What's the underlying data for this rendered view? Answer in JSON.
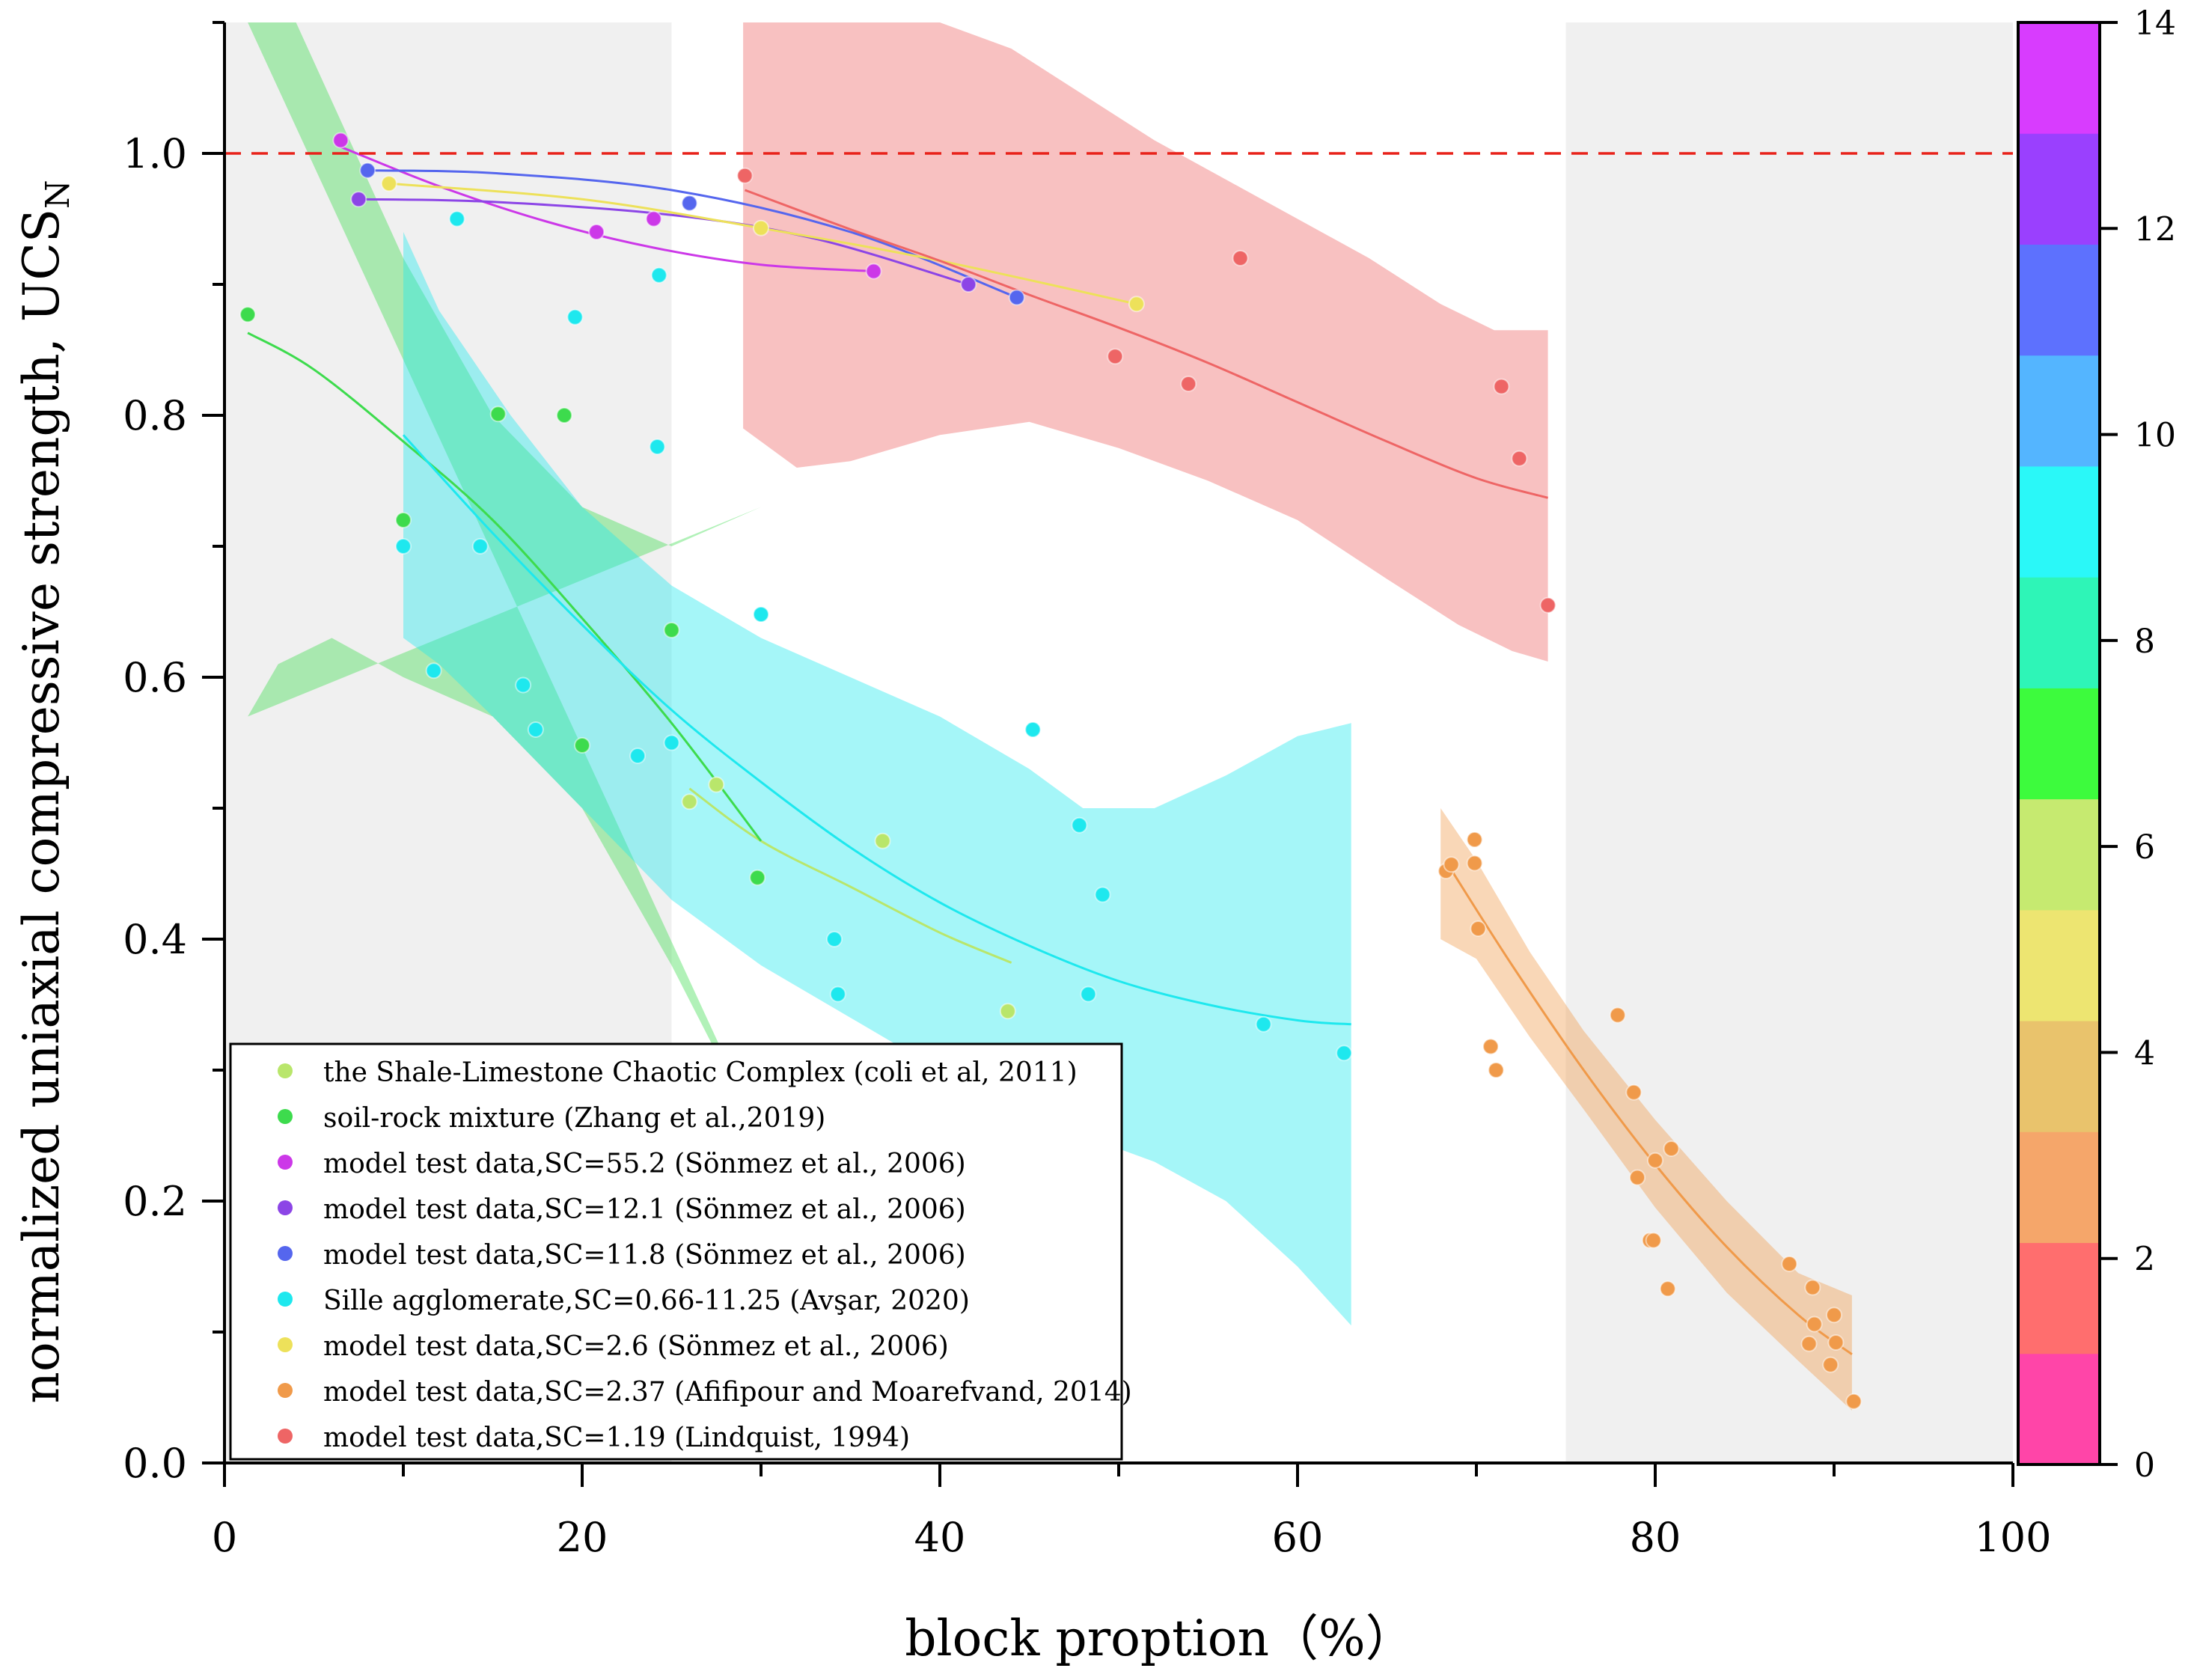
{
  "chart_data": {
    "type": "scatter",
    "xlabel": "block proption（%）",
    "ylabel": "normalized uniaxial compressive strength, UCS",
    "ylabel_sub": "N",
    "xlim": [
      0,
      100
    ],
    "ylim": [
      0,
      1.1
    ],
    "xticks": [
      0,
      20,
      40,
      60,
      80,
      100
    ],
    "yticks": [
      0.0,
      0.2,
      0.4,
      0.6,
      0.8,
      1.0
    ],
    "xtick_labels": [
      "0",
      "20",
      "40",
      "60",
      "80",
      "100"
    ],
    "ytick_labels": [
      "0.0",
      "0.2",
      "0.4",
      "0.6",
      "0.8",
      "1.0"
    ],
    "reference_line": {
      "y": 1.0,
      "color": "#e8221a",
      "style": "dashed"
    },
    "shaded_bands": [
      {
        "x_range": [
          0,
          25
        ],
        "color": "#f0f0f0"
      },
      {
        "x_range": [
          75,
          100
        ],
        "color": "#f0f0f0"
      }
    ],
    "colorbar": {
      "range": [
        0,
        14
      ],
      "ticks": [
        "0",
        "2",
        "4",
        "6",
        "8",
        "10",
        "12",
        "14"
      ],
      "tick_values": [
        0,
        2,
        4,
        6,
        8,
        10,
        12,
        14
      ],
      "colors": [
        "#ff45a8",
        "#ff6e6e",
        "#f5a66a",
        "#e9c36c",
        "#ede571",
        "#c6ea70",
        "#3dfb3d",
        "#2ef5b7",
        "#2af8f8",
        "#54b5ff",
        "#5d71fe",
        "#9a40fe",
        "#d83cfe"
      ]
    },
    "series": [
      {
        "name": "the Shale-Limestone Chaotic Complex (coli et al, 2011)",
        "color": "#b9e66b",
        "points": [
          [
            26,
            0.505
          ],
          [
            27.5,
            0.518
          ],
          [
            43.8,
            0.345
          ],
          [
            36.8,
            0.475
          ]
        ],
        "fit": [
          [
            26,
            0.515
          ],
          [
            30,
            0.475
          ],
          [
            35,
            0.44
          ],
          [
            40,
            0.405
          ],
          [
            44,
            0.382
          ]
        ]
      },
      {
        "name": "soil-rock mixture (Zhang et al.,2019)",
        "color": "#3ddb4d",
        "points": [
          [
            1.3,
            0.877
          ],
          [
            15.3,
            0.801
          ],
          [
            19,
            0.8
          ],
          [
            10,
            0.72
          ],
          [
            25,
            0.636
          ],
          [
            20,
            0.548
          ],
          [
            29.8,
            0.447
          ]
        ],
        "fit": [
          [
            1.3,
            0.863
          ],
          [
            5,
            0.835
          ],
          [
            10,
            0.78
          ],
          [
            15,
            0.72
          ],
          [
            20,
            0.645
          ],
          [
            25,
            0.565
          ],
          [
            30,
            0.475
          ]
        ],
        "band": {
          "upper": [
            [
              1.3,
              1.1
            ],
            [
              4,
              1.1
            ],
            [
              6,
              1.04
            ],
            [
              10,
              0.92
            ],
            [
              15,
              0.8
            ],
            [
              20,
              0.73
            ],
            [
              25,
              0.7
            ],
            [
              30,
              0.73
            ]
          ],
          "lower": [
            [
              1.3,
              0.57
            ],
            [
              3,
              0.61
            ],
            [
              6,
              0.63
            ],
            [
              10,
              0.6
            ],
            [
              15,
              0.57
            ],
            [
              20,
              0.5
            ],
            [
              25,
              0.38
            ],
            [
              28,
              0.3
            ],
            [
              30,
              0.25
            ]
          ]
        }
      },
      {
        "name": "model test data,SC=55.2 (Sönmez et al., 2006)",
        "color": "#cc38e8",
        "points": [
          [
            6.5,
            1.01
          ],
          [
            20.8,
            0.94
          ],
          [
            24,
            0.95
          ],
          [
            36.3,
            0.91
          ]
        ],
        "fit": [
          [
            6.5,
            1.005
          ],
          [
            12,
            0.975
          ],
          [
            18,
            0.948
          ],
          [
            24,
            0.928
          ],
          [
            30,
            0.915
          ],
          [
            36.3,
            0.91
          ]
        ]
      },
      {
        "name": "model test data,SC=12.1 (Sönmez et al., 2006)",
        "color": "#8c45e6",
        "points": [
          [
            7.5,
            0.965
          ],
          [
            41.6,
            0.9
          ]
        ],
        "fit": [
          [
            7.5,
            0.965
          ],
          [
            15,
            0.963
          ],
          [
            25,
            0.953
          ],
          [
            33,
            0.935
          ],
          [
            41.6,
            0.9
          ]
        ]
      },
      {
        "name": "model test data,SC=11.8 (Sönmez et al., 2006)",
        "color": "#5566ee",
        "points": [
          [
            8,
            0.987
          ],
          [
            26,
            0.962
          ],
          [
            44.3,
            0.89
          ]
        ],
        "fit": [
          [
            8,
            0.987
          ],
          [
            15,
            0.985
          ],
          [
            25,
            0.972
          ],
          [
            35,
            0.94
          ],
          [
            44.3,
            0.89
          ]
        ]
      },
      {
        "name": "Sille agglomerate,SC=0.66-11.25 (Avşar, 2020)",
        "color": "#1ee8ee",
        "points": [
          [
            13,
            0.95
          ],
          [
            24.3,
            0.907
          ],
          [
            19.6,
            0.875
          ],
          [
            24.2,
            0.776
          ],
          [
            10,
            0.7
          ],
          [
            14.3,
            0.7
          ],
          [
            30,
            0.648
          ],
          [
            11.7,
            0.605
          ],
          [
            16.7,
            0.594
          ],
          [
            17.4,
            0.56
          ],
          [
            23.1,
            0.54
          ],
          [
            25,
            0.55
          ],
          [
            45.2,
            0.56
          ],
          [
            47.8,
            0.487
          ],
          [
            49.1,
            0.434
          ],
          [
            34.1,
            0.4
          ],
          [
            34.3,
            0.358
          ],
          [
            48.3,
            0.358
          ],
          [
            58.1,
            0.335
          ],
          [
            62.6,
            0.313
          ]
        ],
        "fit": [
          [
            10,
            0.785
          ],
          [
            15,
            0.71
          ],
          [
            20,
            0.64
          ],
          [
            25,
            0.575
          ],
          [
            30,
            0.52
          ],
          [
            35,
            0.47
          ],
          [
            40,
            0.428
          ],
          [
            45,
            0.395
          ],
          [
            50,
            0.368
          ],
          [
            55,
            0.35
          ],
          [
            60,
            0.338
          ],
          [
            63,
            0.335
          ]
        ],
        "band": {
          "upper": [
            [
              10,
              0.94
            ],
            [
              12,
              0.88
            ],
            [
              16,
              0.8
            ],
            [
              20,
              0.73
            ],
            [
              25,
              0.67
            ],
            [
              30,
              0.63
            ],
            [
              35,
              0.6
            ],
            [
              40,
              0.57
            ],
            [
              45,
              0.53
            ],
            [
              48,
              0.5
            ],
            [
              52,
              0.5
            ],
            [
              56,
              0.525
            ],
            [
              60,
              0.555
            ],
            [
              63,
              0.565
            ]
          ],
          "lower": [
            [
              63,
              0.105
            ],
            [
              60,
              0.15
            ],
            [
              56,
              0.2
            ],
            [
              52,
              0.23
            ],
            [
              48,
              0.25
            ],
            [
              44,
              0.275
            ],
            [
              40,
              0.3
            ],
            [
              35,
              0.34
            ],
            [
              30,
              0.38
            ],
            [
              25,
              0.43
            ],
            [
              20,
              0.5
            ],
            [
              15,
              0.57
            ],
            [
              12,
              0.61
            ],
            [
              10,
              0.63
            ]
          ]
        }
      },
      {
        "name": "model test data,SC=2.6 (Sönmez et al., 2006)",
        "color": "#ede15a",
        "points": [
          [
            9.2,
            0.977
          ],
          [
            30,
            0.943
          ],
          [
            51,
            0.885
          ]
        ],
        "fit": [
          [
            9.2,
            0.977
          ],
          [
            20,
            0.965
          ],
          [
            30,
            0.943
          ],
          [
            40,
            0.918
          ],
          [
            51,
            0.885
          ]
        ]
      },
      {
        "name": "model test data,SC=2.37 (Afifipour and Moarefvand, 2014)",
        "color": "#f09a4a",
        "points": [
          [
            68.3,
            0.452
          ],
          [
            68.6,
            0.457
          ],
          [
            69.9,
            0.476
          ],
          [
            69.9,
            0.458
          ],
          [
            70.1,
            0.408
          ],
          [
            70.8,
            0.318
          ],
          [
            71.1,
            0.3
          ],
          [
            77.9,
            0.342
          ],
          [
            78.8,
            0.283
          ],
          [
            79,
            0.218
          ],
          [
            79.7,
            0.17
          ],
          [
            79.9,
            0.17
          ],
          [
            80,
            0.231
          ],
          [
            80.7,
            0.133
          ],
          [
            80.9,
            0.24
          ],
          [
            87.5,
            0.152
          ],
          [
            88.6,
            0.091
          ],
          [
            88.8,
            0.134
          ],
          [
            88.9,
            0.106
          ],
          [
            89.8,
            0.075
          ],
          [
            90,
            0.113
          ],
          [
            90.1,
            0.092
          ],
          [
            91.1,
            0.047
          ]
        ],
        "fit": [
          [
            68.5,
            0.455
          ],
          [
            72,
            0.38
          ],
          [
            76,
            0.3
          ],
          [
            80,
            0.228
          ],
          [
            84,
            0.165
          ],
          [
            88,
            0.113
          ],
          [
            91,
            0.083
          ]
        ],
        "band": {
          "upper": [
            [
              68,
              0.5
            ],
            [
              70,
              0.46
            ],
            [
              73,
              0.39
            ],
            [
              76,
              0.33
            ],
            [
              80,
              0.262
            ],
            [
              84,
              0.2
            ],
            [
              88,
              0.145
            ],
            [
              91,
              0.128
            ]
          ],
          "lower": [
            [
              91,
              0.04
            ],
            [
              88,
              0.078
            ],
            [
              84,
              0.13
            ],
            [
              80,
              0.195
            ],
            [
              76,
              0.27
            ],
            [
              73,
              0.325
            ],
            [
              70,
              0.385
            ],
            [
              68,
              0.4
            ]
          ]
        }
      },
      {
        "name": "model test data,SC=1.19 (Lindquist, 1994)",
        "color": "#ee6565",
        "points": [
          [
            29.1,
            0.983
          ],
          [
            49.8,
            0.845
          ],
          [
            53.9,
            0.824
          ],
          [
            56.8,
            0.92
          ],
          [
            71.4,
            0.822
          ],
          [
            72.4,
            0.767
          ],
          [
            74,
            0.655
          ]
        ],
        "fit": [
          [
            29.1,
            0.972
          ],
          [
            35,
            0.942
          ],
          [
            40,
            0.918
          ],
          [
            45,
            0.892
          ],
          [
            50,
            0.867
          ],
          [
            55,
            0.84
          ],
          [
            60,
            0.81
          ],
          [
            65,
            0.78
          ],
          [
            70,
            0.752
          ],
          [
            74,
            0.737
          ]
        ],
        "band": {
          "upper": [
            [
              29,
              1.1
            ],
            [
              35,
              1.1
            ],
            [
              40,
              1.1
            ],
            [
              44,
              1.08
            ],
            [
              48,
              1.045
            ],
            [
              52,
              1.01
            ],
            [
              56,
              0.98
            ],
            [
              60,
              0.95
            ],
            [
              64,
              0.92
            ],
            [
              68,
              0.885
            ],
            [
              71,
              0.865
            ],
            [
              74,
              0.865
            ]
          ],
          "lower": [
            [
              74,
              0.612
            ],
            [
              72,
              0.62
            ],
            [
              69,
              0.64
            ],
            [
              65,
              0.675
            ],
            [
              60,
              0.72
            ],
            [
              55,
              0.75
            ],
            [
              50,
              0.775
            ],
            [
              45,
              0.795
            ],
            [
              40,
              0.785
            ],
            [
              35,
              0.765
            ],
            [
              32,
              0.76
            ],
            [
              29,
              0.79
            ]
          ]
        }
      }
    ]
  }
}
